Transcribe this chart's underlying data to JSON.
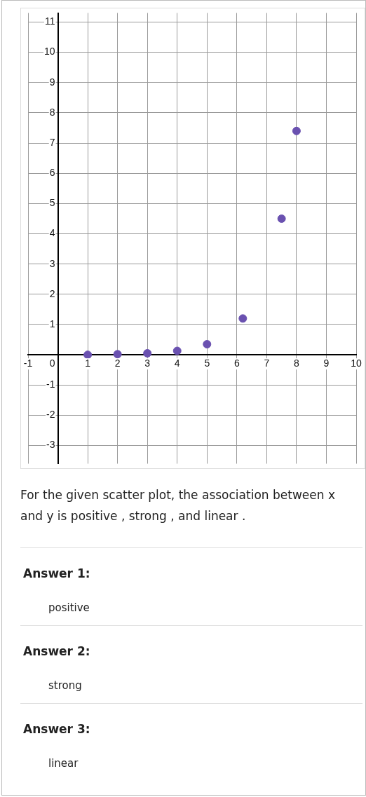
{
  "chart_data": {
    "type": "scatter",
    "x": [
      1,
      2,
      3,
      4,
      5,
      6.2,
      7.5,
      8
    ],
    "series": [
      {
        "color": "#6a51b0",
        "values": [
          0,
          0.02,
          0.05,
          0.13,
          0.35,
          1.2,
          4.5,
          7.4
        ]
      }
    ],
    "xlim": [
      -1,
      10
    ],
    "xticks": [
      -1,
      0,
      1,
      2,
      3,
      4,
      5,
      6,
      7,
      8,
      9,
      10
    ],
    "ylim": [
      -3.6,
      11.3
    ],
    "yticks": [
      -3,
      -2,
      -1,
      {
        "value": 0,
        "label": null
      },
      1,
      2,
      3,
      4,
      5,
      6,
      7,
      8,
      9,
      10,
      11
    ],
    "grid": true,
    "marker": "circle",
    "annotations": [
      "For the given scatter plot, the association between x and y is positive , strong , and linear .",
      "Answer 1:",
      "positive",
      "Answer 2:",
      "strong",
      "Answer 3:",
      "linear"
    ]
  }
}
